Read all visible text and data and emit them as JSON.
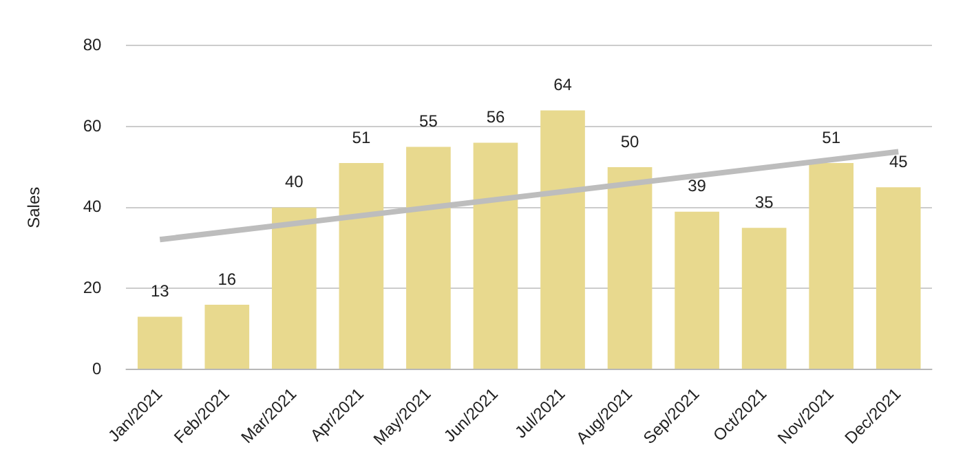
{
  "chart_data": {
    "type": "bar",
    "ylabel": "Sales",
    "categories": [
      "Jan/2021",
      "Feb/2021",
      "Mar/2021",
      "Apr/2021",
      "May/2021",
      "Jun/2021",
      "Jul/2021",
      "Aug/2021",
      "Sep/2021",
      "Oct/2021",
      "Nov/2021",
      "Dec/2021"
    ],
    "series": [
      {
        "color": "#e8d98e",
        "values": [
          13,
          16,
          40,
          51,
          55,
          56,
          64,
          50,
          39,
          35,
          51,
          45
        ],
        "value_labels": [
          "13",
          "16",
          "40",
          "51",
          "55",
          "56",
          "64",
          "50",
          "39",
          "35",
          "51",
          "45"
        ]
      },
      {
        "type": "line",
        "color": "#bdbdbd",
        "x": [
          "Jan/2021",
          "Dec/2021"
        ],
        "values": [
          32.1,
          53.8
        ]
      }
    ],
    "ylim": [
      0,
      80
    ],
    "yticks": [
      0,
      20,
      40,
      60,
      80
    ],
    "grid": "y",
    "legend": false
  }
}
